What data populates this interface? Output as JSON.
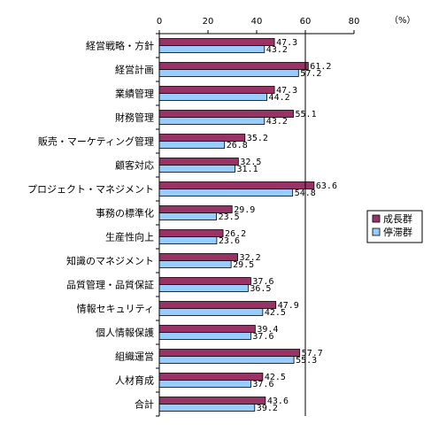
{
  "chart_data": {
    "type": "bar",
    "orientation": "horizontal",
    "unit": "（%）",
    "xlim": [
      0,
      80
    ],
    "ticks": [
      "0",
      "20",
      "40",
      "60",
      "80"
    ],
    "grid": false,
    "legend_position": "right",
    "categories": [
      "経営戦略・方針",
      "経営計画",
      "業績管理",
      "財務管理",
      "販売・マーケティング管理",
      "顧客対応",
      "プロジェクト・マネジメント",
      "事務の標準化",
      "生産性向上",
      "知識のマネジメント",
      "品質管理・品質保証",
      "情報セキュリティ",
      "個人情報保護",
      "組織運営",
      "人材育成",
      "合計"
    ],
    "series": [
      {
        "name": "成長群",
        "color": "#993366",
        "values": [
          47.3,
          61.2,
          47.3,
          55.1,
          35.2,
          32.5,
          63.6,
          29.9,
          26.2,
          32.2,
          37.6,
          47.9,
          39.4,
          57.7,
          42.5,
          43.6
        ]
      },
      {
        "name": "停滞群",
        "color": "#99ccff",
        "values": [
          43.2,
          57.2,
          44.2,
          43.2,
          26.8,
          31.1,
          54.8,
          23.5,
          23.6,
          29.5,
          36.5,
          42.5,
          37.6,
          55.3,
          37.6,
          39.2
        ]
      }
    ]
  }
}
